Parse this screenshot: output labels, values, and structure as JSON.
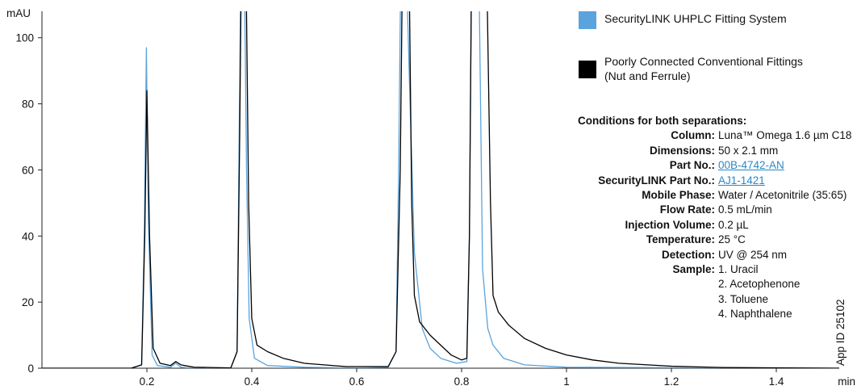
{
  "chart_data": {
    "type": "line",
    "y_unit_label": "mAU",
    "x_unit_label": "min",
    "xlim": [
      0,
      1.52
    ],
    "ylim": [
      0,
      108
    ],
    "x_ticks": [
      0.2,
      0.4,
      0.6,
      0.8,
      1,
      1.2,
      1.4
    ],
    "x_tick_labels": [
      "0.2",
      "0.4",
      "0.6",
      "0.8",
      "1",
      "1.2",
      "1.4"
    ],
    "y_ticks": [
      0,
      20,
      40,
      60,
      80,
      100
    ],
    "y_tick_labels": [
      "0",
      "20",
      "40",
      "60",
      "80",
      "100"
    ],
    "grid": false,
    "series": [
      {
        "name": "SecurityLINK UHPLC Fitting System",
        "color": "#5aa3dc",
        "points": [
          [
            0,
            0
          ],
          [
            0.17,
            0
          ],
          [
            0.19,
            1
          ],
          [
            0.195,
            40
          ],
          [
            0.199,
            97
          ],
          [
            0.203,
            45
          ],
          [
            0.21,
            4
          ],
          [
            0.22,
            0.8
          ],
          [
            0.245,
            0.3
          ],
          [
            0.255,
            1.5
          ],
          [
            0.265,
            0.3
          ],
          [
            0.29,
            0
          ],
          [
            0.36,
            0
          ],
          [
            0.372,
            5
          ],
          [
            0.376,
            70
          ],
          [
            0.379,
            120
          ],
          [
            0.386,
            120
          ],
          [
            0.39,
            60
          ],
          [
            0.395,
            15
          ],
          [
            0.405,
            3
          ],
          [
            0.43,
            0.8
          ],
          [
            0.5,
            0.3
          ],
          [
            0.6,
            0.1
          ],
          [
            0.66,
            0.3
          ],
          [
            0.675,
            5
          ],
          [
            0.68,
            60
          ],
          [
            0.684,
            120
          ],
          [
            0.695,
            120
          ],
          [
            0.7,
            90
          ],
          [
            0.71,
            35
          ],
          [
            0.725,
            12
          ],
          [
            0.74,
            6
          ],
          [
            0.76,
            3
          ],
          [
            0.79,
            1.5
          ],
          [
            0.81,
            2
          ],
          [
            0.815,
            40
          ],
          [
            0.819,
            120
          ],
          [
            0.833,
            120
          ],
          [
            0.84,
            30
          ],
          [
            0.85,
            12
          ],
          [
            0.86,
            7
          ],
          [
            0.88,
            3
          ],
          [
            0.92,
            1
          ],
          [
            1.0,
            0.3
          ],
          [
            1.52,
            0
          ]
        ]
      },
      {
        "name": "Poorly Connected Conventional Fittings (Nut and Ferrule)",
        "color": "#000000",
        "points": [
          [
            0,
            0
          ],
          [
            0.17,
            0
          ],
          [
            0.19,
            1
          ],
          [
            0.196,
            40
          ],
          [
            0.2,
            84
          ],
          [
            0.205,
            40
          ],
          [
            0.212,
            6
          ],
          [
            0.225,
            1.5
          ],
          [
            0.245,
            0.8
          ],
          [
            0.255,
            2
          ],
          [
            0.265,
            1
          ],
          [
            0.29,
            0.3
          ],
          [
            0.36,
            0.1
          ],
          [
            0.372,
            5
          ],
          [
            0.377,
            70
          ],
          [
            0.38,
            120
          ],
          [
            0.389,
            120
          ],
          [
            0.394,
            50
          ],
          [
            0.4,
            15
          ],
          [
            0.41,
            7
          ],
          [
            0.43,
            5
          ],
          [
            0.46,
            3
          ],
          [
            0.5,
            1.5
          ],
          [
            0.58,
            0.5
          ],
          [
            0.66,
            0.5
          ],
          [
            0.675,
            5
          ],
          [
            0.683,
            60
          ],
          [
            0.687,
            120
          ],
          [
            0.7,
            120
          ],
          [
            0.705,
            50
          ],
          [
            0.71,
            22
          ],
          [
            0.72,
            14
          ],
          [
            0.74,
            10
          ],
          [
            0.76,
            7
          ],
          [
            0.78,
            4
          ],
          [
            0.8,
            2.5
          ],
          [
            0.81,
            3
          ],
          [
            0.815,
            40
          ],
          [
            0.819,
            120
          ],
          [
            0.848,
            120
          ],
          [
            0.855,
            50
          ],
          [
            0.86,
            22
          ],
          [
            0.87,
            17
          ],
          [
            0.89,
            13
          ],
          [
            0.92,
            9
          ],
          [
            0.96,
            6
          ],
          [
            1.0,
            4
          ],
          [
            1.05,
            2.5
          ],
          [
            1.1,
            1.5
          ],
          [
            1.2,
            0.6
          ],
          [
            1.3,
            0.2
          ],
          [
            1.52,
            0
          ]
        ]
      }
    ]
  },
  "legend": {
    "items": [
      {
        "label": "SecurityLINK UHPLC Fitting System",
        "color": "#5aa3dc"
      },
      {
        "label": "Poorly Connected Conventional Fittings",
        "label2": "(Nut and Ferrule)",
        "color": "#000000"
      }
    ]
  },
  "conditions": {
    "title": "Conditions for both separations:",
    "rows": [
      {
        "label": "Column:",
        "value": "Luna™ Omega 1.6 µm C18"
      },
      {
        "label": "Dimensions:",
        "value": "50 x 2.1 mm"
      },
      {
        "label": "Part No.:",
        "value": "00B-4742-AN",
        "link": true
      },
      {
        "label": "SecurityLINK Part No.:",
        "value": "AJ1-1421",
        "link": true
      },
      {
        "label": "Mobile Phase:",
        "value": "Water / Acetonitrile (35:65)"
      },
      {
        "label": "Flow Rate:",
        "value": "0.5 mL/min"
      },
      {
        "label": "Injection Volume:",
        "value": "0.2 µL"
      },
      {
        "label": "Temperature:",
        "value": "25 °C"
      },
      {
        "label": "Detection:",
        "value": "UV @ 254 nm"
      },
      {
        "label": "Sample:",
        "value": "1. Uracil"
      }
    ],
    "sample_more": [
      "2. Acetophenone",
      "3. Toluene",
      "4. Naphthalene"
    ]
  },
  "app_id": "App ID 25102"
}
